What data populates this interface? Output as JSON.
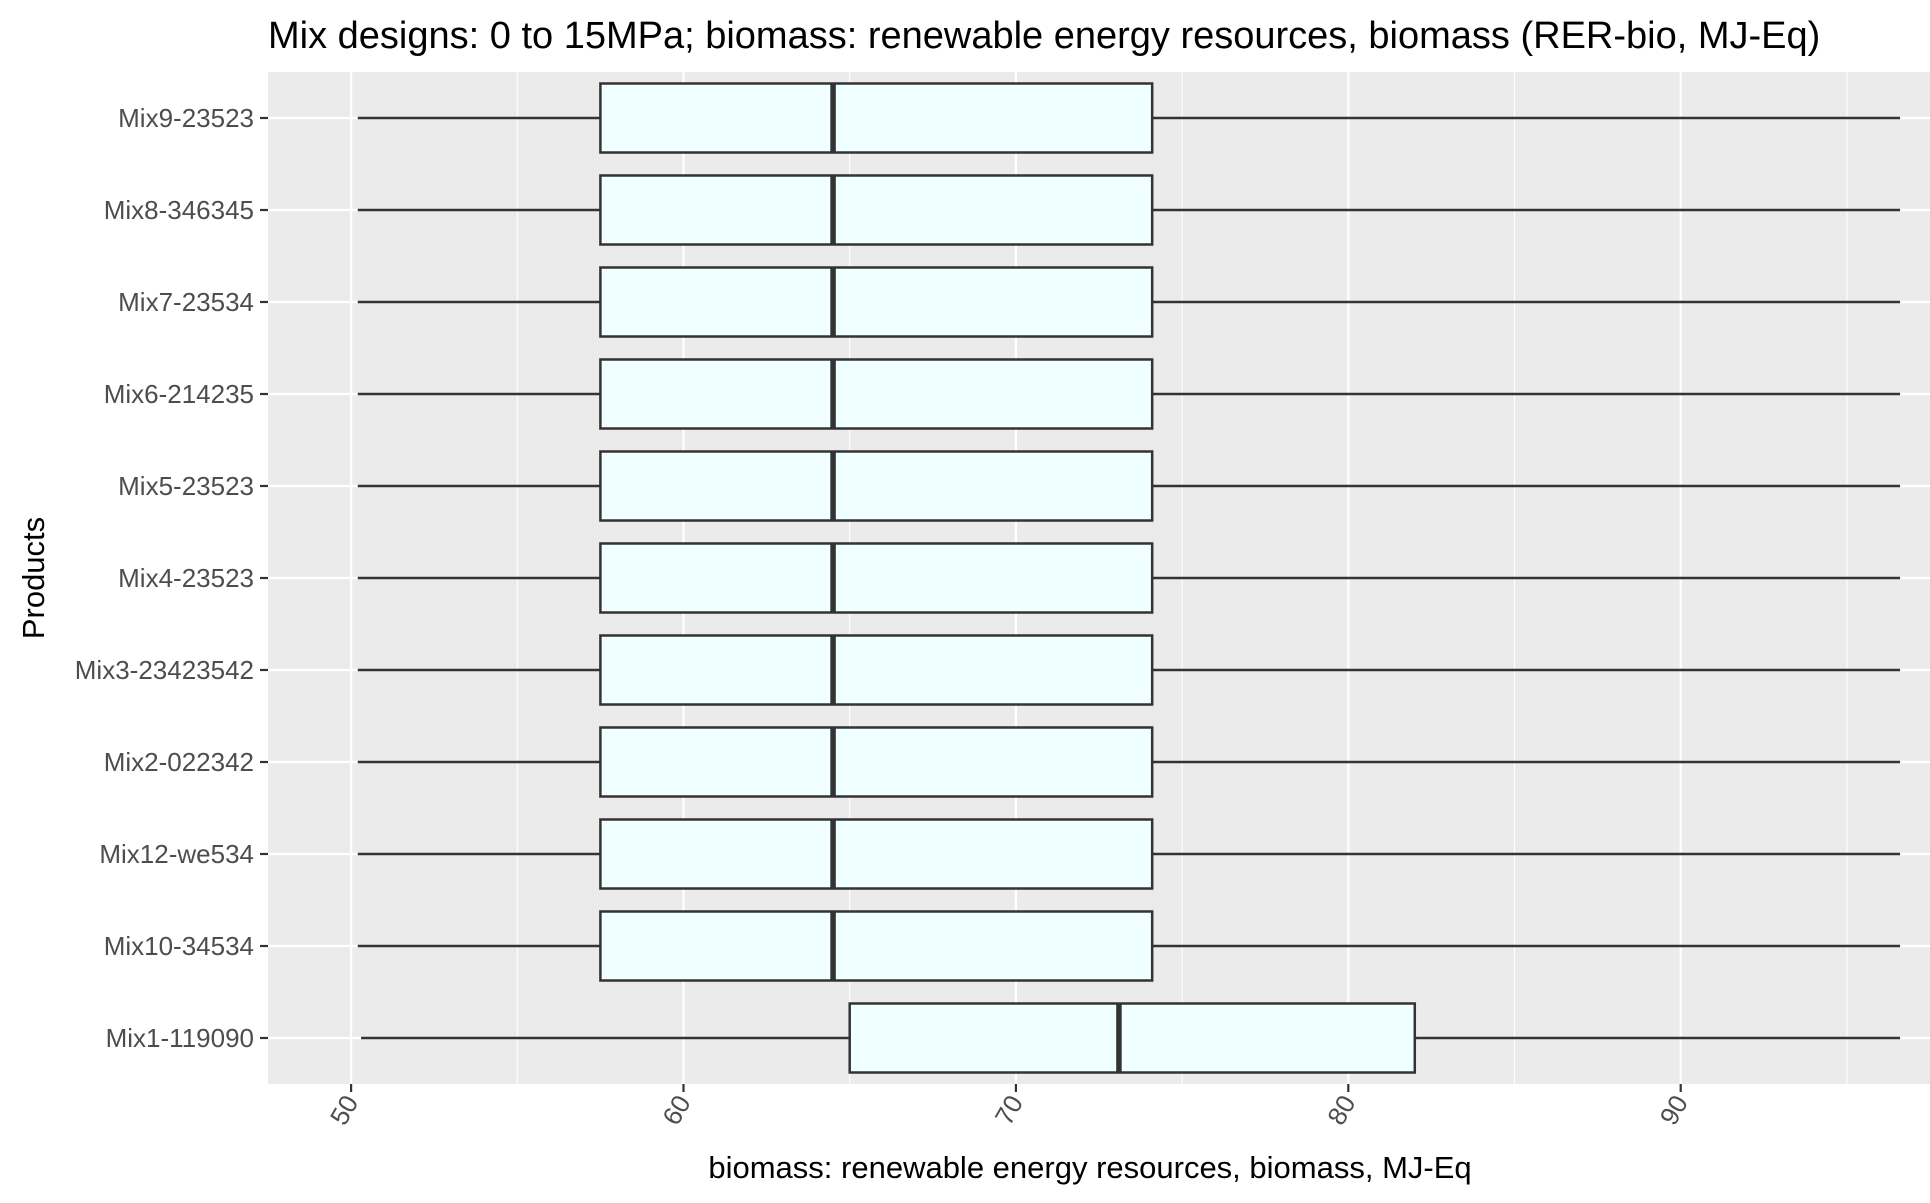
{
  "chart_data": {
    "type": "boxplot",
    "orientation": "horizontal",
    "title": "Mix designs: 0 to 15MPa; biomass: renewable energy resources, biomass (RER-bio, MJ-Eq)",
    "xlabel": "biomass: renewable energy resources, biomass, MJ-Eq",
    "ylabel": "Products",
    "xlim": [
      47.5,
      97.5
    ],
    "xticks": [
      50,
      60,
      70,
      80,
      90
    ],
    "xtick_labels": [
      "50",
      "60",
      "70",
      "80",
      "90"
    ],
    "grid": true,
    "box_fill": "#f0ffff",
    "panel_background": "#ebebeb",
    "categories": [
      "Mix1-119090",
      "Mix10-34534",
      "Mix12-we534",
      "Mix2-022342",
      "Mix3-23423542",
      "Mix4-23523",
      "Mix5-23523",
      "Mix6-214235",
      "Mix7-23534",
      "Mix8-346345",
      "Mix9-23523"
    ],
    "series": [
      {
        "category": "Mix1-119090",
        "min": 50.3,
        "q1": 65.0,
        "median": 73.1,
        "q3": 82.0,
        "max": 96.6
      },
      {
        "category": "Mix10-34534",
        "min": 50.2,
        "q1": 57.5,
        "median": 64.5,
        "q3": 74.1,
        "max": 96.6
      },
      {
        "category": "Mix12-we534",
        "min": 50.2,
        "q1": 57.5,
        "median": 64.5,
        "q3": 74.1,
        "max": 96.6
      },
      {
        "category": "Mix2-022342",
        "min": 50.2,
        "q1": 57.5,
        "median": 64.5,
        "q3": 74.1,
        "max": 96.6
      },
      {
        "category": "Mix3-23423542",
        "min": 50.2,
        "q1": 57.5,
        "median": 64.5,
        "q3": 74.1,
        "max": 96.6
      },
      {
        "category": "Mix4-23523",
        "min": 50.2,
        "q1": 57.5,
        "median": 64.5,
        "q3": 74.1,
        "max": 96.6
      },
      {
        "category": "Mix5-23523",
        "min": 50.2,
        "q1": 57.5,
        "median": 64.5,
        "q3": 74.1,
        "max": 96.6
      },
      {
        "category": "Mix6-214235",
        "min": 50.2,
        "q1": 57.5,
        "median": 64.5,
        "q3": 74.1,
        "max": 96.6
      },
      {
        "category": "Mix7-23534",
        "min": 50.2,
        "q1": 57.5,
        "median": 64.5,
        "q3": 74.1,
        "max": 96.6
      },
      {
        "category": "Mix8-346345",
        "min": 50.2,
        "q1": 57.5,
        "median": 64.5,
        "q3": 74.1,
        "max": 96.6
      },
      {
        "category": "Mix9-23523",
        "min": 50.2,
        "q1": 57.5,
        "median": 64.5,
        "q3": 74.1,
        "max": 96.6
      }
    ]
  }
}
